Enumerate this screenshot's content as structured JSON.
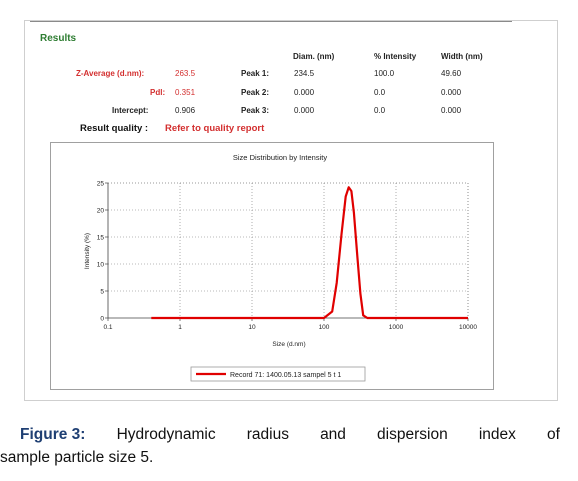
{
  "results": {
    "title": "Results",
    "headers": {
      "diam": "Diam. (nm)",
      "intensity": "% Intensity",
      "width": "Width (nm)"
    },
    "z_average": {
      "label": "Z-Average (d.nm):",
      "value": "263.5"
    },
    "pdi": {
      "label": "Pdl:",
      "value": "0.351"
    },
    "intercept": {
      "label": "Intercept:",
      "value": "0.906"
    },
    "peaks": [
      {
        "label": "Peak 1:",
        "diam": "234.5",
        "intensity": "100.0",
        "width": "49.60"
      },
      {
        "label": "Peak 2:",
        "diam": "0.000",
        "intensity": "0.0",
        "width": "0.000"
      },
      {
        "label": "Peak 3:",
        "diam": "0.000",
        "intensity": "0.0",
        "width": "0.000"
      }
    ],
    "quality_label": "Result quality :",
    "quality_link": "Refer to quality report"
  },
  "chart_data": {
    "type": "line",
    "title": "Size Distribution by Intensity",
    "xlabel": "Size (d.nm)",
    "ylabel": "Intensity (%)",
    "x_scale": "log",
    "xlim": [
      0.1,
      10000
    ],
    "ylim": [
      0,
      25
    ],
    "x_ticks": [
      "0.1",
      "1",
      "10",
      "100",
      "1000",
      "10000"
    ],
    "y_ticks": [
      "0",
      "5",
      "10",
      "15",
      "20",
      "25"
    ],
    "grid": true,
    "legend_position": "bottom",
    "series_color": "#e00000",
    "series": [
      {
        "name": "Record 71: 1400.05.13 sampel 5 t 1",
        "x": [
          0.4,
          100,
          130,
          150,
          175,
          200,
          220,
          240,
          260,
          290,
          320,
          350,
          400,
          10000
        ],
        "y": [
          0,
          0,
          1.2,
          6.5,
          15.5,
          22.5,
          24.2,
          23.5,
          19.5,
          11.5,
          4.5,
          0.5,
          0,
          0
        ]
      }
    ]
  },
  "caption": {
    "label": "Figure 3:",
    "line1_words": [
      "Hydrodynamic",
      "radius",
      "and",
      "dispersion",
      "index",
      "of"
    ],
    "line2": "sample particle size 5."
  }
}
